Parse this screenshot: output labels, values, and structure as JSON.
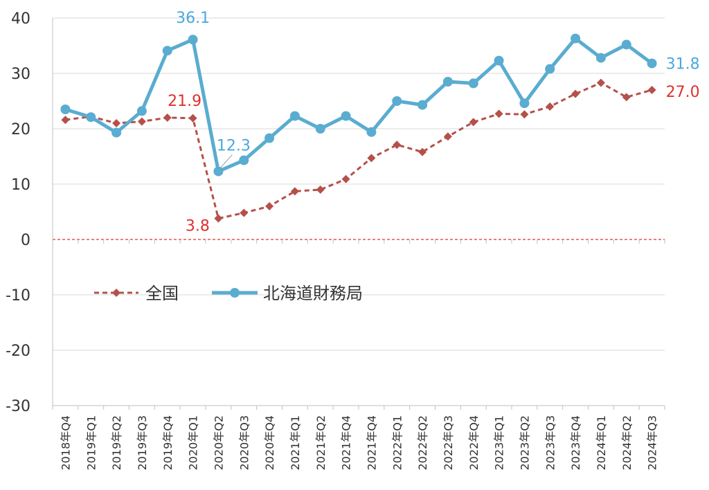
{
  "chart_data": {
    "type": "line",
    "categories": [
      "2018年Q4",
      "2019年Q1",
      "2019年Q2",
      "2019年Q3",
      "2019年Q4",
      "2020年Q1",
      "2020年Q2",
      "2020年Q3",
      "2020年Q4",
      "2021年Q1",
      "2021年Q2",
      "2021年Q4",
      "2021年Q4",
      "2022年Q1",
      "2022年Q2",
      "2022年Q3",
      "2022年Q4",
      "2023年Q1",
      "2023年Q2",
      "2023年Q3",
      "2023年Q4",
      "2024年Q1",
      "2024年Q2",
      "2024年Q3"
    ],
    "ylim": [
      -30,
      40
    ],
    "yticks": [
      -30,
      -20,
      -10,
      0,
      10,
      20,
      30,
      40
    ],
    "series": [
      {
        "name": "全国",
        "color": "#b5504a",
        "style": "dashed",
        "marker": "diamond",
        "values": [
          21.6,
          22.2,
          21.0,
          21.3,
          22.0,
          21.9,
          3.8,
          4.8,
          6.0,
          8.7,
          9.0,
          10.9,
          14.7,
          17.1,
          15.8,
          18.6,
          21.2,
          22.7,
          22.6,
          24.0,
          26.3,
          28.3,
          25.7,
          27.0
        ]
      },
      {
        "name": "北海道財務局",
        "color": "#5aacd0",
        "style": "solid",
        "marker": "circle",
        "values": [
          23.5,
          22.1,
          19.3,
          23.2,
          34.1,
          36.1,
          12.3,
          14.3,
          18.3,
          22.3,
          20.0,
          22.3,
          19.4,
          25.0,
          24.3,
          28.5,
          28.2,
          32.3,
          24.6,
          30.8,
          36.3,
          32.8,
          35.2,
          31.8
        ]
      }
    ],
    "data_labels": [
      {
        "series": 1,
        "index": 5,
        "text": "36.1"
      },
      {
        "series": 1,
        "index": 6,
        "text": "12.3"
      },
      {
        "series": 1,
        "index": 23,
        "text": "31.8"
      },
      {
        "series": 0,
        "index": 5,
        "text": "21.9"
      },
      {
        "series": 0,
        "index": 6,
        "text": "3.8"
      },
      {
        "series": 0,
        "index": 23,
        "text": "27.0"
      }
    ],
    "label_colors": {
      "blue": "#4aa8dd",
      "red": "#e0302a"
    },
    "zero_line_color": "#e0302a",
    "grid": true,
    "legend": "center-left inside plot"
  }
}
